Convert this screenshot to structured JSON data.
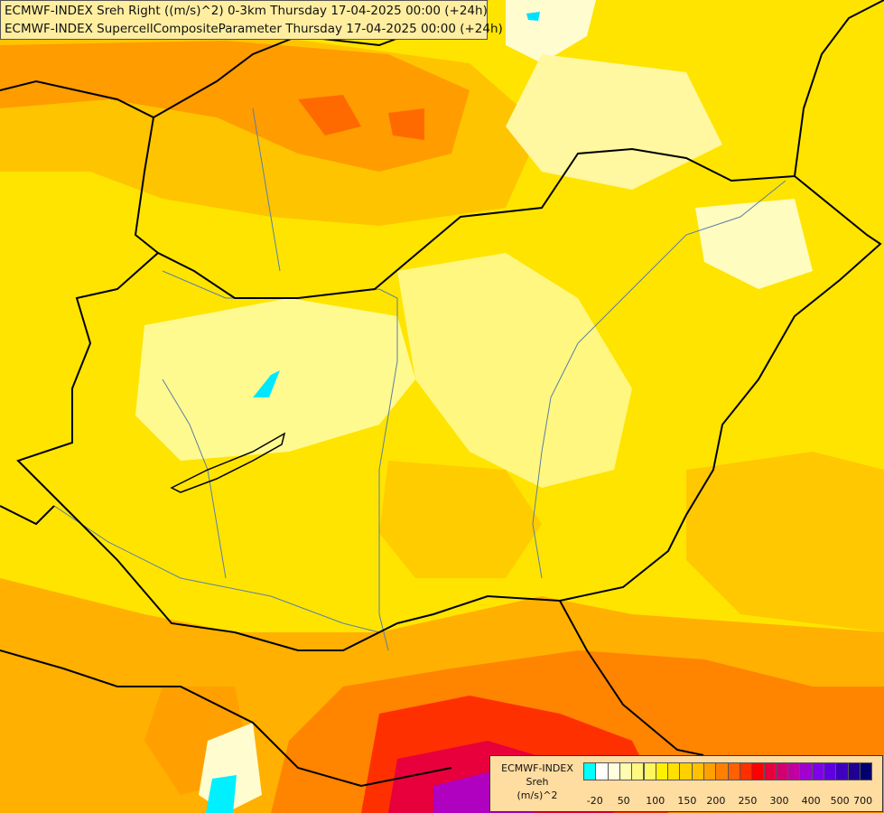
{
  "header": {
    "line1": "ECMWF-INDEX Sreh Right ((m/s)^2) 0-3km Thursday 17-04-2025 00:00 (+24h)",
    "line2": "ECMWF-INDEX SupercellCompositeParameter Thursday 17-04-2025 00:00 (+24h)"
  },
  "legend": {
    "source": "ECMWF-INDEX",
    "variable": "Sreh",
    "unit": "(m/s)^2",
    "colors": [
      "#00ffff",
      "#ffffff",
      "#ffffe0",
      "#fffbb0",
      "#fff880",
      "#fff560",
      "#fff000",
      "#ffe000",
      "#ffd000",
      "#ffc000",
      "#ffa000",
      "#ff8000",
      "#ff6000",
      "#ff3000",
      "#ff0000",
      "#e8003c",
      "#d00070",
      "#c000a0",
      "#a000d0",
      "#8000e8",
      "#6000e0",
      "#4000c0",
      "#200090",
      "#000070"
    ],
    "ticks": [
      "-20",
      "50",
      "100",
      "150",
      "200",
      "250",
      "300",
      "400",
      "500",
      "700"
    ],
    "tick_positions": [
      0.04,
      0.14,
      0.25,
      0.36,
      0.46,
      0.57,
      0.68,
      0.79,
      0.89,
      0.97
    ]
  }
}
